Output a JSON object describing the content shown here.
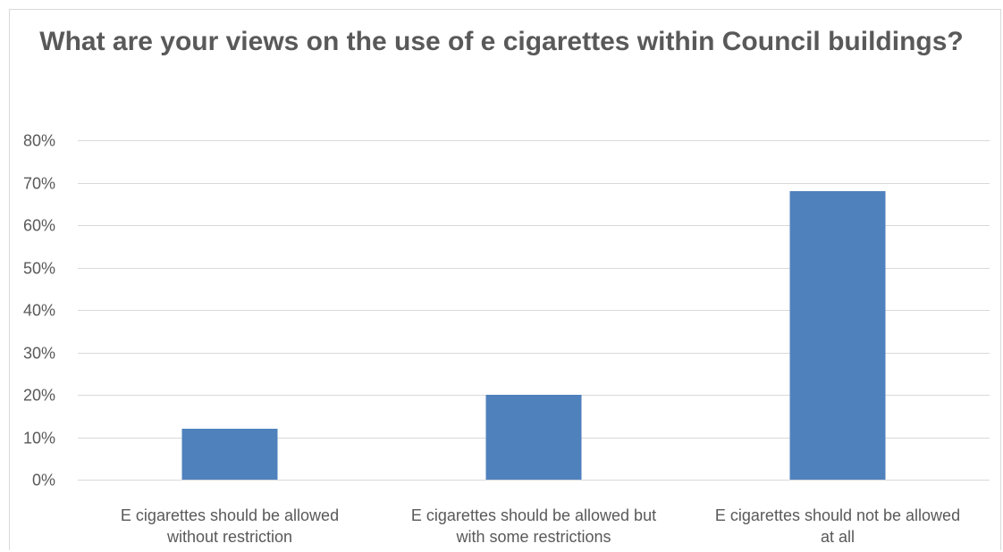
{
  "chart_data": {
    "type": "bar",
    "title": "What are your views on the use of e cigarettes within Council buildings?",
    "categories": [
      "E cigarettes should be allowed without restriction",
      "E cigarettes should be allowed but with some restrictions",
      "E cigarettes should not be allowed at all"
    ],
    "category_lines": [
      [
        "E cigarettes should be allowed",
        "without restriction"
      ],
      [
        "E cigarettes should be allowed but",
        "with some restrictions"
      ],
      [
        "E cigarettes should not be allowed",
        "at all"
      ]
    ],
    "values": [
      12,
      20,
      68
    ],
    "value_unit": "%",
    "ylim": [
      0,
      80
    ],
    "y_ticks": [
      0,
      10,
      20,
      30,
      40,
      50,
      60,
      70,
      80
    ],
    "y_tick_labels": [
      "0%",
      "10%",
      "20%",
      "30%",
      "40%",
      "50%",
      "60%",
      "70%",
      "80%"
    ],
    "xlabel": "",
    "ylabel": "",
    "grid": true,
    "legend": "none",
    "bar_color": "#4f81bd",
    "grid_color": "#d9d9d9",
    "text_color": "#595959"
  }
}
